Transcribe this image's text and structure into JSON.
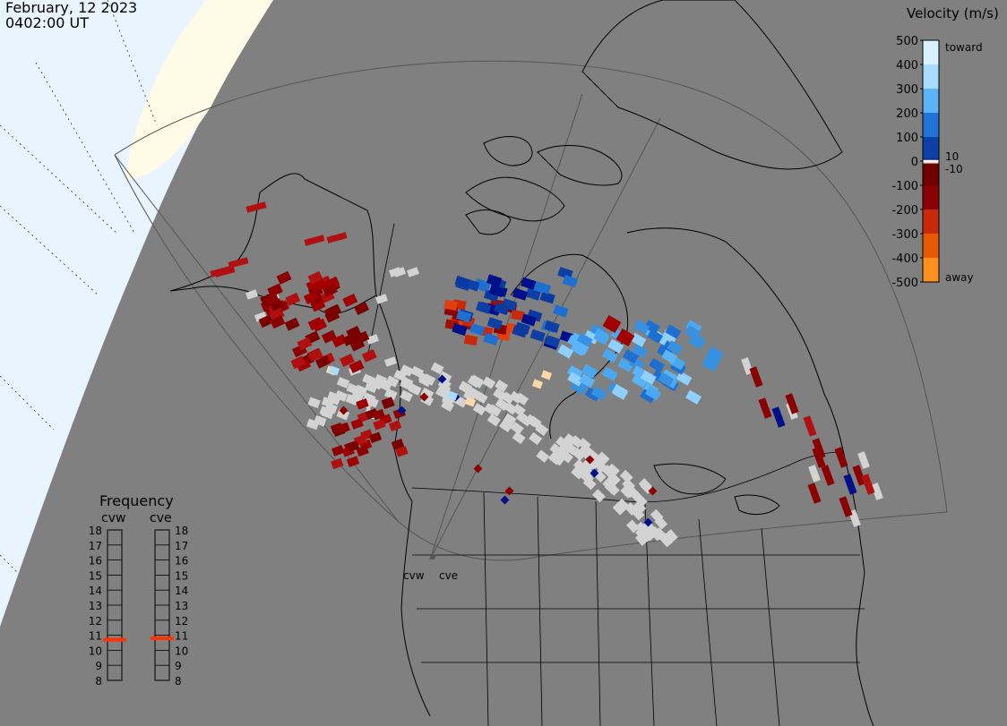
{
  "header": {
    "date": "February, 12 2023",
    "time": "0402:00 UT"
  },
  "colorbar": {
    "title": "Velocity (m/s)",
    "ticks": [
      "500",
      "400",
      "300",
      "200",
      "100",
      "0",
      "-100",
      "-200",
      "-300",
      "-400",
      "-500"
    ],
    "ticks_values": [
      500,
      400,
      300,
      200,
      100,
      0,
      -100,
      -200,
      -300,
      -400,
      -500
    ],
    "label_toward": "toward",
    "label_away": "away",
    "label_pos": "10",
    "label_neg": "-10",
    "colors": [
      "#ffffff",
      "#cfeaff",
      "#8fd0ff",
      "#4aa8f0",
      "#1e6fd0",
      "#0a3aa0",
      "#00108a",
      "#d0d0d0",
      "#8b0000",
      "#b01010",
      "#cc3300",
      "#e65c00",
      "#ff8c1a",
      "#ffd8a8"
    ]
  },
  "frequency": {
    "title": "Frequency",
    "radars": [
      {
        "name": "cvw",
        "value": 10.7
      },
      {
        "name": "cve",
        "value": 10.8
      }
    ],
    "scale": [
      "18",
      "17",
      "16",
      "15",
      "14",
      "13",
      "12",
      "11",
      "10",
      "9",
      "8"
    ],
    "scale_values": [
      18,
      17,
      16,
      15,
      14,
      13,
      12,
      11,
      10,
      9,
      8
    ],
    "indicator_color": "#ff3300"
  },
  "map": {
    "radar_labels": [
      "cvw",
      "cve"
    ],
    "colors": {
      "day": "#e8f4ff",
      "terminator": "#fffbe6",
      "night": "#808080",
      "coast": "#000000",
      "ground_scatter": "#d3d3d3"
    }
  }
}
